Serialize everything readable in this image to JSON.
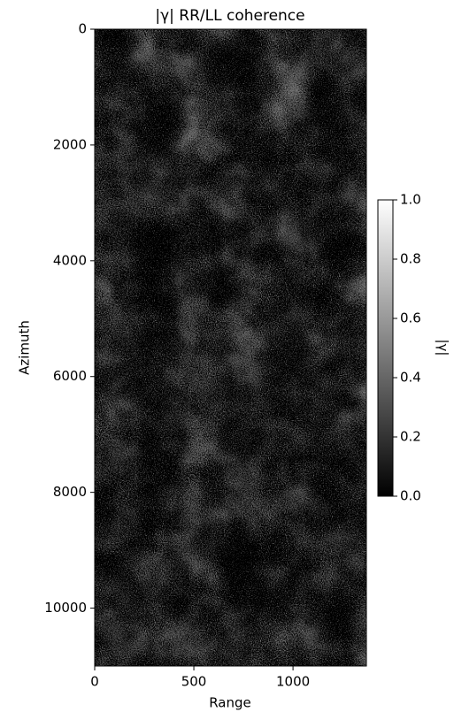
{
  "chart_data": {
    "type": "image",
    "title": "|γ| RR/LL coherence",
    "xlabel": "Range",
    "ylabel": "Azimuth",
    "xlim": [
      0,
      1370
    ],
    "xticks": [
      0,
      500,
      1000
    ],
    "ylim": [
      11000,
      0
    ],
    "yticks": [
      0,
      2000,
      4000,
      6000,
      8000,
      10000
    ],
    "colormap": "gray",
    "colorbar": {
      "label": "|γ|",
      "lim": [
        0,
        1
      ],
      "ticks": [
        {
          "value": 0,
          "label": "0.0"
        },
        0.2,
        0.4,
        0.6,
        0.8,
        {
          "value": 1,
          "label": "1.0"
        }
      ]
    }
  }
}
